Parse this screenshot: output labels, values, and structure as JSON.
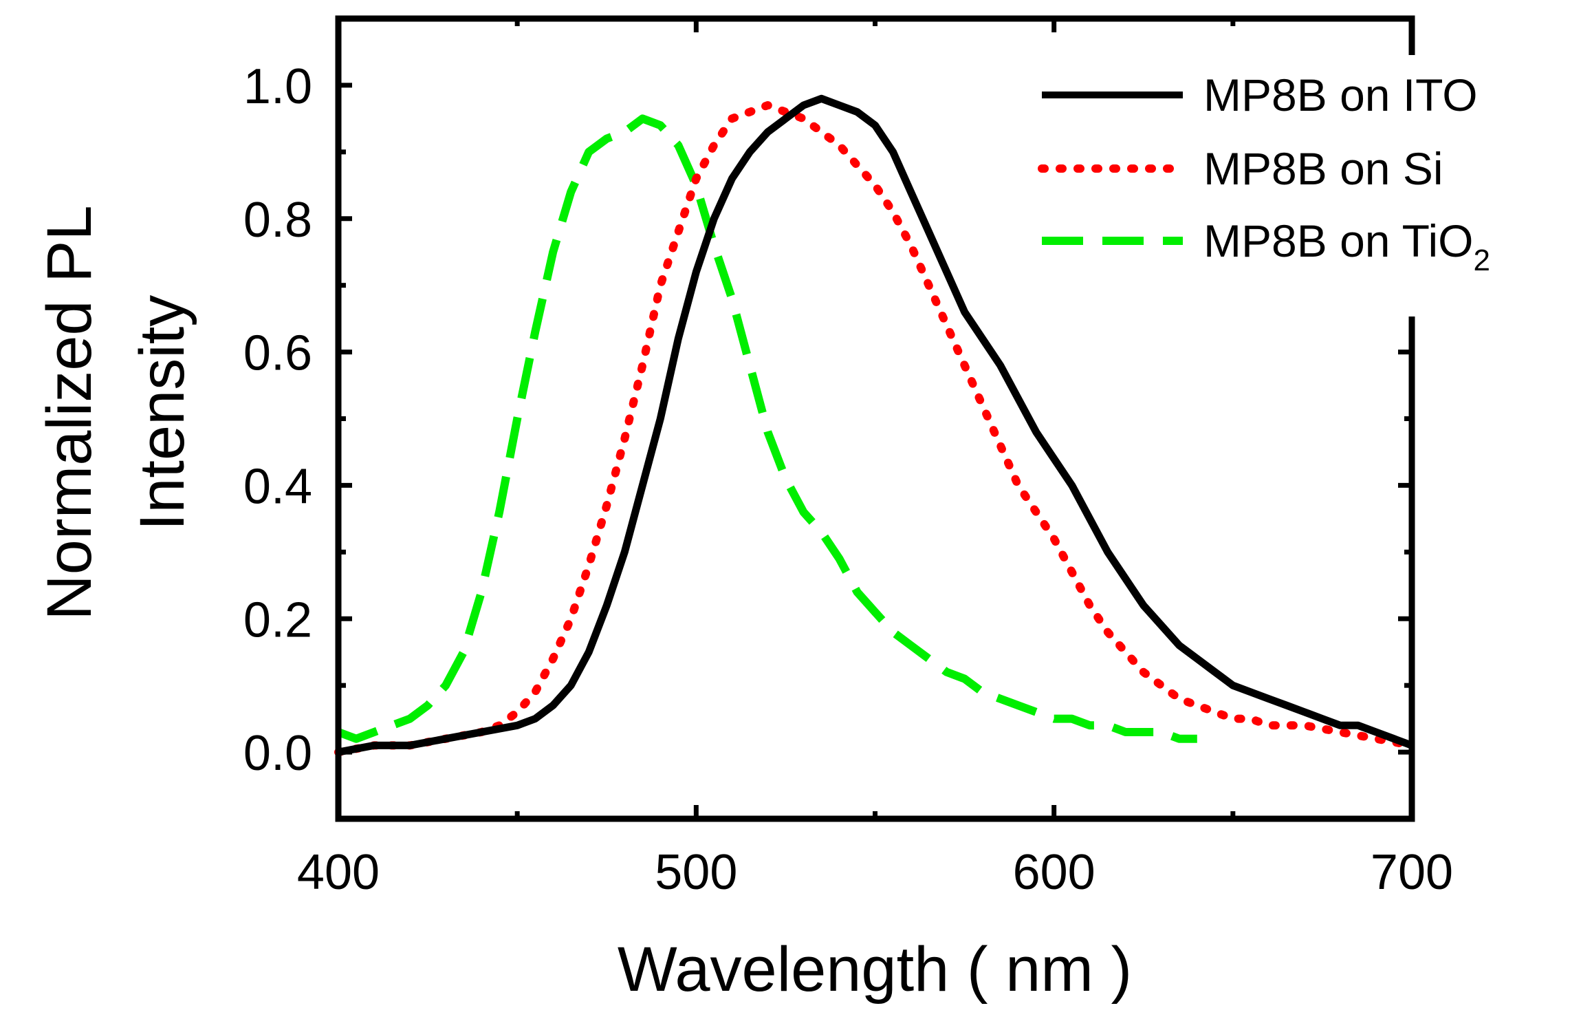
{
  "chart_data": {
    "type": "line",
    "title": "",
    "xlabel": "Wavelength ( nm )",
    "ylabel_line1": "Normalized PL",
    "ylabel_line2": "Intensity",
    "xlim": [
      400,
      700
    ],
    "ylim": [
      -0.1,
      1.1
    ],
    "xticks": [
      400,
      500,
      600,
      700
    ],
    "xtick_labels": [
      "400",
      "500",
      "600",
      "700"
    ],
    "yticks": [
      0.0,
      0.2,
      0.4,
      0.6,
      0.8,
      1.0
    ],
    "ytick_labels": [
      "0.0",
      "0.2",
      "0.4",
      "0.6",
      "0.8",
      "1.0"
    ],
    "grid": false,
    "legend_position": "top-right",
    "series": [
      {
        "name": "MP8B on ITO",
        "legend_label": "MP8B on ITO",
        "color": "#000000",
        "style": "solid",
        "x": [
          400,
          410,
          420,
          430,
          440,
          450,
          455,
          460,
          465,
          470,
          475,
          480,
          485,
          490,
          495,
          500,
          505,
          510,
          515,
          520,
          525,
          530,
          535,
          540,
          545,
          550,
          555,
          560,
          565,
          570,
          575,
          580,
          585,
          590,
          595,
          600,
          605,
          610,
          615,
          620,
          625,
          630,
          635,
          640,
          645,
          650,
          655,
          660,
          665,
          670,
          675,
          680,
          685,
          690,
          695,
          700
        ],
        "y": [
          0.0,
          0.01,
          0.01,
          0.02,
          0.03,
          0.04,
          0.05,
          0.07,
          0.1,
          0.15,
          0.22,
          0.3,
          0.4,
          0.5,
          0.62,
          0.72,
          0.8,
          0.86,
          0.9,
          0.93,
          0.95,
          0.97,
          0.98,
          0.97,
          0.96,
          0.94,
          0.9,
          0.84,
          0.78,
          0.72,
          0.66,
          0.62,
          0.58,
          0.53,
          0.48,
          0.44,
          0.4,
          0.35,
          0.3,
          0.26,
          0.22,
          0.19,
          0.16,
          0.14,
          0.12,
          0.1,
          0.09,
          0.08,
          0.07,
          0.06,
          0.05,
          0.04,
          0.04,
          0.03,
          0.02,
          0.01
        ]
      },
      {
        "name": "MP8B on Si",
        "legend_label": "MP8B on Si",
        "color": "#ff0000",
        "style": "dotted",
        "x": [
          400,
          410,
          420,
          430,
          440,
          445,
          450,
          455,
          460,
          465,
          470,
          475,
          480,
          485,
          490,
          495,
          500,
          505,
          510,
          515,
          520,
          525,
          530,
          535,
          540,
          545,
          550,
          555,
          560,
          565,
          570,
          575,
          580,
          585,
          590,
          595,
          600,
          605,
          610,
          615,
          620,
          625,
          630,
          635,
          640,
          645,
          650,
          655,
          660,
          670,
          680,
          690,
          700
        ],
        "y": [
          0.0,
          0.01,
          0.01,
          0.02,
          0.03,
          0.04,
          0.06,
          0.09,
          0.14,
          0.2,
          0.28,
          0.37,
          0.47,
          0.58,
          0.7,
          0.78,
          0.86,
          0.91,
          0.95,
          0.96,
          0.97,
          0.96,
          0.95,
          0.93,
          0.91,
          0.88,
          0.85,
          0.81,
          0.76,
          0.7,
          0.64,
          0.58,
          0.52,
          0.46,
          0.4,
          0.36,
          0.32,
          0.27,
          0.22,
          0.18,
          0.15,
          0.12,
          0.1,
          0.08,
          0.07,
          0.06,
          0.05,
          0.05,
          0.04,
          0.04,
          0.03,
          0.02,
          0.01
        ]
      },
      {
        "name": "MP8B on TiO2",
        "legend_label_main": "MP8B on TiO",
        "legend_label_sub": "2",
        "color": "#00ee00",
        "style": "dashed",
        "x": [
          400,
          405,
          410,
          415,
          420,
          425,
          430,
          435,
          440,
          445,
          450,
          455,
          460,
          465,
          470,
          475,
          480,
          485,
          490,
          495,
          500,
          505,
          510,
          515,
          520,
          525,
          530,
          535,
          540,
          545,
          550,
          555,
          560,
          565,
          570,
          575,
          580,
          585,
          590,
          595,
          600,
          605,
          610,
          615,
          620,
          625,
          630,
          635,
          640
        ],
        "y": [
          0.03,
          0.02,
          0.03,
          0.04,
          0.05,
          0.07,
          0.1,
          0.15,
          0.24,
          0.36,
          0.5,
          0.63,
          0.75,
          0.84,
          0.9,
          0.92,
          0.93,
          0.95,
          0.94,
          0.91,
          0.85,
          0.76,
          0.68,
          0.58,
          0.48,
          0.41,
          0.36,
          0.33,
          0.29,
          0.24,
          0.21,
          0.18,
          0.16,
          0.14,
          0.12,
          0.11,
          0.09,
          0.08,
          0.07,
          0.06,
          0.05,
          0.05,
          0.04,
          0.04,
          0.03,
          0.03,
          0.03,
          0.02,
          0.02
        ]
      }
    ]
  }
}
